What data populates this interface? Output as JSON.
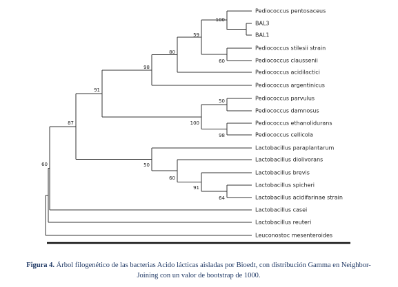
{
  "tree": {
    "leaves": [
      "Pediococcus pentosaceus",
      "BAL3",
      "BAL1",
      "Pediococcus stilesii strain",
      "Pediococcus claussenii",
      "Pediococcus acidilactici",
      "Pediococcus argentinicus",
      "Pediococcus parvulus",
      "Pediococcus damnosus",
      "Pediococcus ethanolidurans",
      "Pediococcus cellicola",
      "Lactobacillus paraplantarum",
      "Lactobacillus diolivorans",
      "Lactobacillus brevis",
      "Lactobacillus spicheri",
      "Lactobacillus acidifarinae strain",
      "Lactobacillus casei",
      "Lactobacillus reuteri",
      "Leuconostoc mesenteroides"
    ],
    "bootstrap": [
      "100",
      "60",
      "59",
      "80",
      "98",
      "50",
      "98",
      "100",
      "91",
      "64",
      "91",
      "60",
      "50",
      "87",
      "60"
    ]
  },
  "caption": {
    "label": "Figura 4.",
    "lines": [
      "Árbol filogenético de las bacterias Acido lácticas aisladas por Bioedt, con distribución Gamma en Neighbor-",
      "Joining con un valor de bootstrap de 1000."
    ]
  }
}
